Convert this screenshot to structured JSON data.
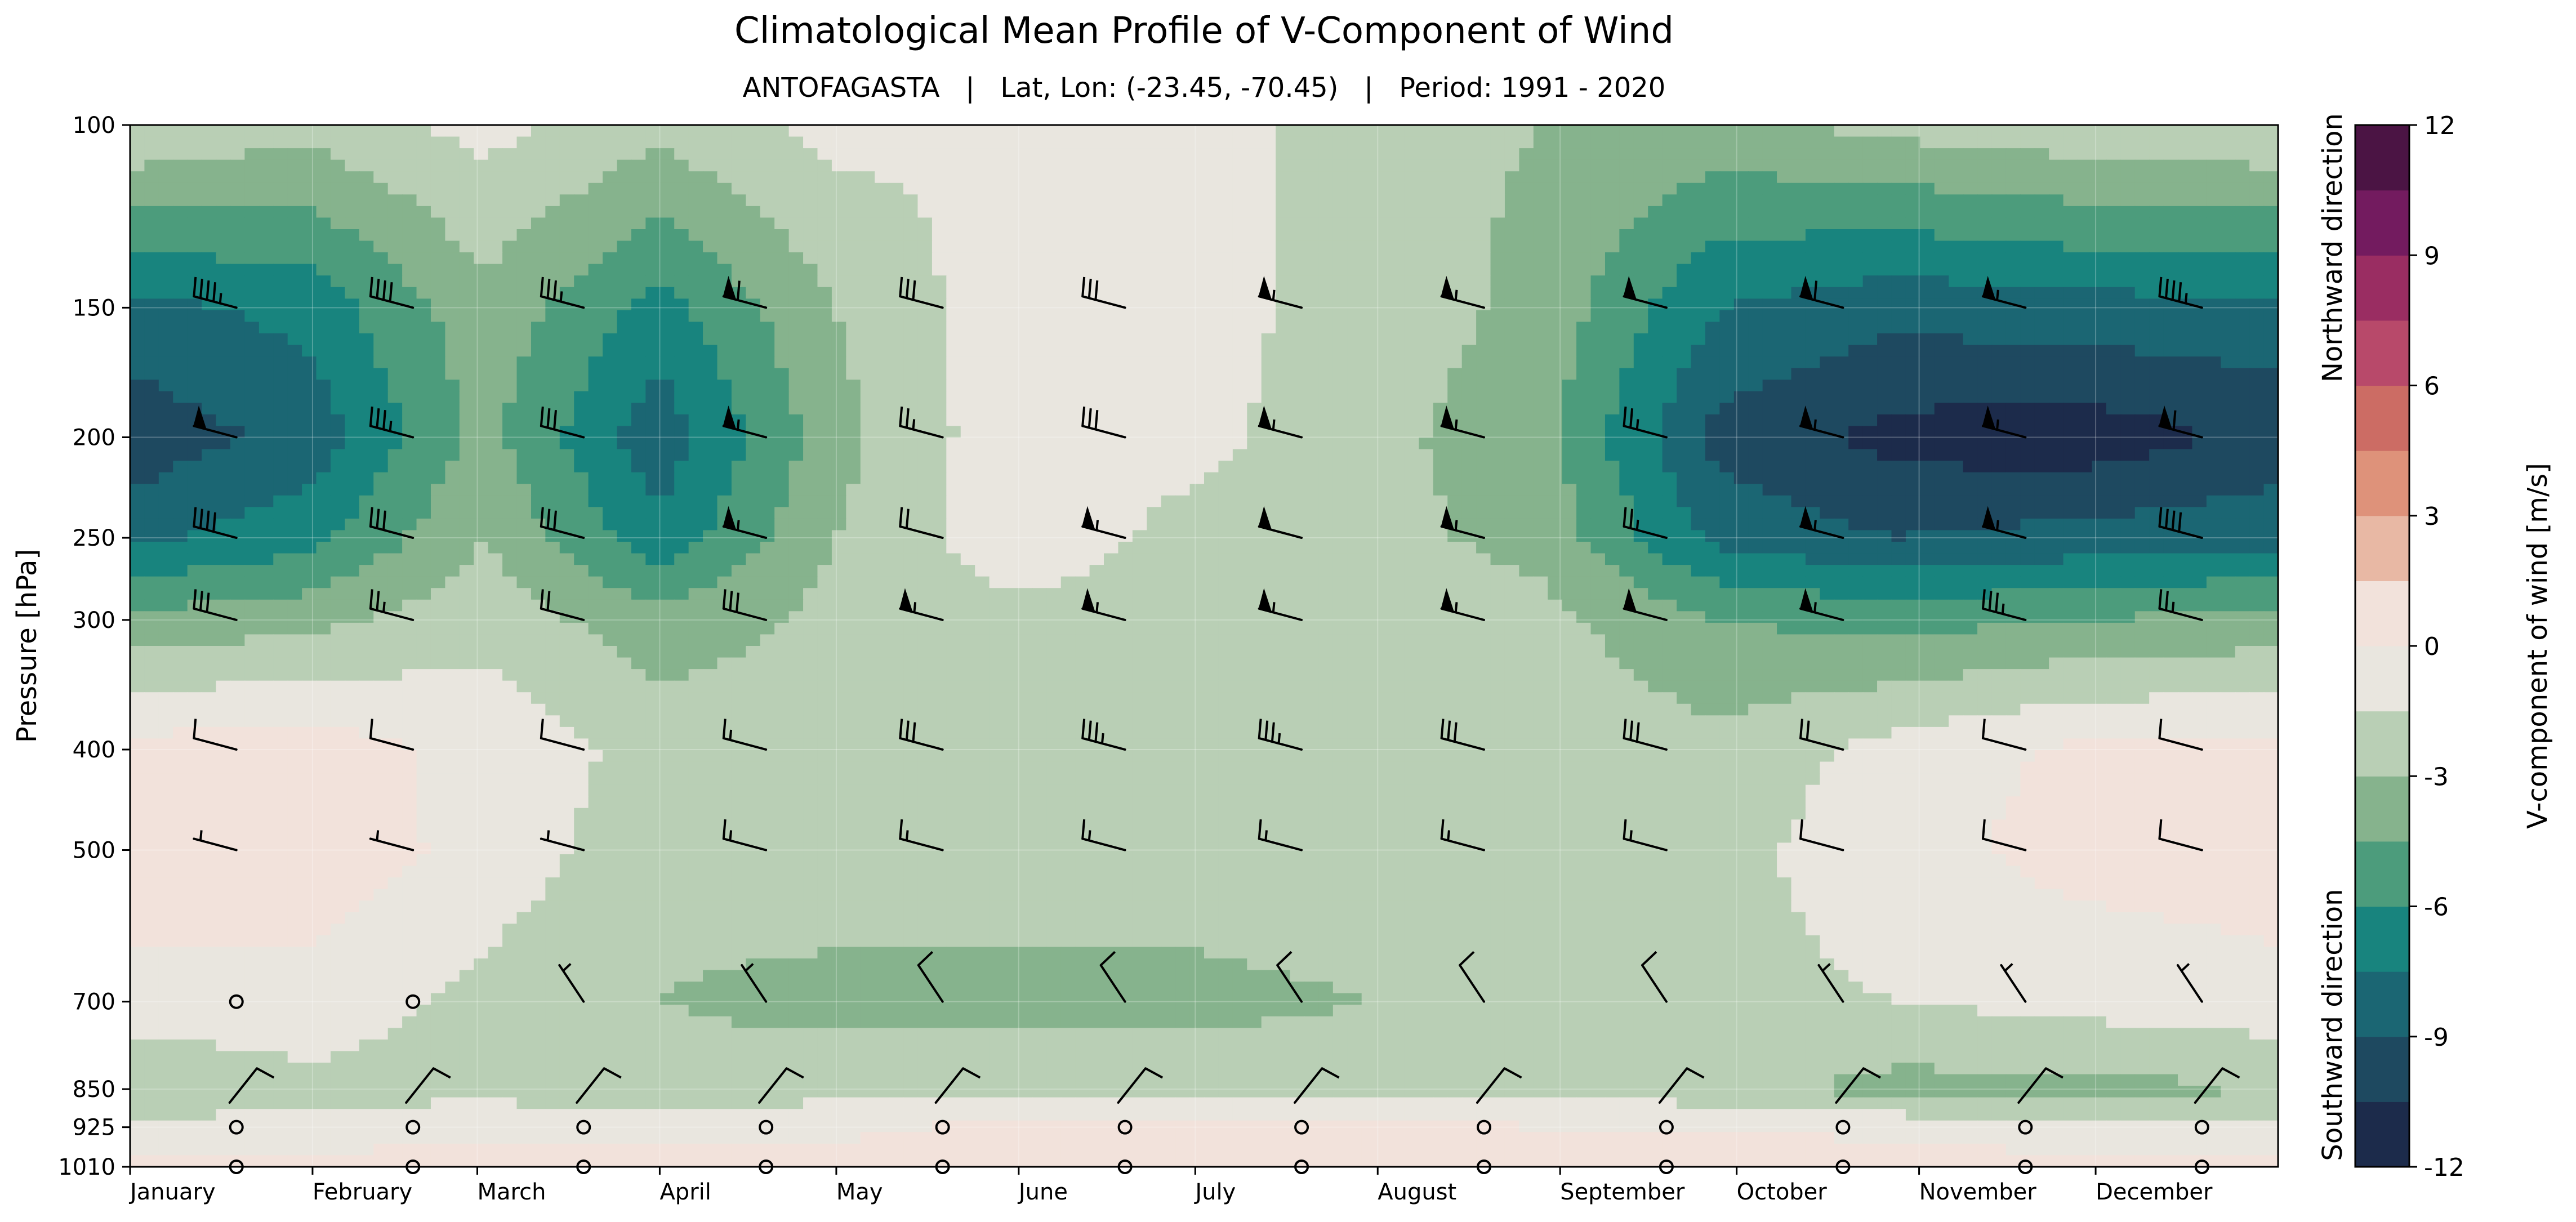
{
  "chart_data": {
    "type": "heatmap",
    "subtype": "filled-contour with wind barbs",
    "title": "Climatological Mean Profile of V-Component of Wind",
    "subtitle": "ANTOFAGASTA   |   Lat, Lon: (-23.45, -70.45)   |   Period: 1991 - 2020",
    "ylabel": "Pressure [hPa]",
    "colorbar_label": "V-component of wind [m/s]",
    "colorbar_top_note": "Northward direction",
    "colorbar_bottom_note": "Southward direction",
    "y_scale": "log",
    "y_inverted": true,
    "ylim": [
      1010,
      100
    ],
    "y_ticks": [
      100,
      150,
      200,
      250,
      300,
      400,
      500,
      700,
      850,
      925,
      1010
    ],
    "xlim": [
      0,
      365
    ],
    "x_ticks": [
      {
        "label": "January",
        "day": 0
      },
      {
        "label": "February",
        "day": 31
      },
      {
        "label": "March",
        "day": 59
      },
      {
        "label": "April",
        "day": 90
      },
      {
        "label": "May",
        "day": 120
      },
      {
        "label": "June",
        "day": 151
      },
      {
        "label": "July",
        "day": 181
      },
      {
        "label": "August",
        "day": 212
      },
      {
        "label": "September",
        "day": 243
      },
      {
        "label": "October",
        "day": 273
      },
      {
        "label": "November",
        "day": 304
      },
      {
        "label": "December",
        "day": 334
      }
    ],
    "colorbar_levels": [
      -12,
      -10.5,
      -9,
      -7.5,
      -6,
      -4.5,
      -3,
      -1.5,
      0,
      1.5,
      3,
      4.5,
      6,
      7.5,
      9,
      10.5,
      12
    ],
    "colorbar_ticks": [
      "12",
      "9",
      "6",
      "3",
      "0",
      "-3",
      "-6",
      "-9",
      "-12"
    ],
    "colors": [
      "#1c2b4b",
      "#1e4960",
      "#1b6673",
      "#18847e",
      "#4c9c7c",
      "#86b38d",
      "#b9cfb5",
      "#e9e6df",
      "#f2e2db",
      "#e8b8a4",
      "#de927a",
      "#cc6c64",
      "#b8496a",
      "#9a2d62",
      "#731b5f",
      "#4b1444"
    ],
    "z_days": [
      0,
      30,
      60,
      90,
      120,
      150,
      180,
      210,
      240,
      270,
      300,
      330,
      365
    ],
    "z_levels": [
      100,
      150,
      200,
      250,
      300,
      400,
      500,
      700,
      850,
      925,
      1010
    ],
    "z_values_ms": [
      [
        -1.5,
        -2.5,
        -1.0,
        -2.5,
        -1.0,
        -1.5,
        -0.5,
        -2.5,
        -3.0,
        -3.5,
        -2.5,
        -2.0,
        -1.5
      ],
      [
        -8.0,
        -7.0,
        -3.5,
        -6.5,
        -3.0,
        -0.5,
        -1.0,
        -2.0,
        -3.5,
        -7.5,
        -8.5,
        -8.0,
        -8.0
      ],
      [
        -10.0,
        -8.5,
        -4.0,
        -8.5,
        -3.5,
        -0.5,
        -1.0,
        -2.5,
        -4.0,
        -9.5,
        -11.0,
        -11.5,
        -10.0
      ],
      [
        -8.0,
        -6.5,
        -3.0,
        -7.0,
        -3.0,
        -0.5,
        -2.0,
        -2.5,
        -3.5,
        -8.0,
        -9.0,
        -8.5,
        -8.0
      ],
      [
        -4.0,
        -3.5,
        -2.0,
        -4.0,
        -2.5,
        -2.0,
        -2.0,
        -2.0,
        -2.5,
        -4.5,
        -5.0,
        -4.5,
        -4.0
      ],
      [
        0.5,
        0.8,
        -0.5,
        -2.0,
        -2.0,
        -2.0,
        -2.0,
        -2.0,
        -2.0,
        -2.5,
        -1.0,
        0.3,
        0.5
      ],
      [
        0.8,
        1.0,
        -0.5,
        -2.5,
        -2.0,
        -2.0,
        -2.0,
        -2.0,
        -2.0,
        -2.0,
        -0.5,
        0.5,
        0.8
      ],
      [
        -0.5,
        -0.5,
        -2.0,
        -3.0,
        -3.5,
        -3.5,
        -3.5,
        -3.0,
        -3.0,
        -2.0,
        -1.5,
        -1.0,
        -0.5
      ],
      [
        -3.0,
        -2.0,
        -2.0,
        -2.5,
        -2.0,
        -2.0,
        -2.0,
        -2.0,
        -2.0,
        -2.5,
        -3.5,
        -3.5,
        -3.0
      ],
      [
        -1.0,
        -1.0,
        -0.5,
        -0.5,
        -0.5,
        0.5,
        0.5,
        0.5,
        0.0,
        0.0,
        -0.5,
        -1.0,
        -1.0
      ],
      [
        0.5,
        0.5,
        0.8,
        0.8,
        1.0,
        1.2,
        1.2,
        1.2,
        1.0,
        1.0,
        0.8,
        0.5,
        0.5
      ]
    ],
    "barb_days": [
      15,
      45,
      74,
      105,
      135,
      166,
      196,
      227,
      258,
      288,
      319,
      349
    ],
    "barb_levels": [
      150,
      200,
      250,
      300,
      400,
      500,
      700,
      925,
      1010
    ],
    "barb_speeds_knots": [
      [
        45,
        40,
        35,
        60,
        30,
        30,
        55,
        55,
        50,
        60,
        55,
        45
      ],
      [
        50,
        35,
        30,
        55,
        25,
        30,
        55,
        55,
        25,
        55,
        55,
        60
      ],
      [
        40,
        30,
        30,
        55,
        20,
        55,
        50,
        55,
        25,
        55,
        55,
        40
      ],
      [
        30,
        25,
        20,
        30,
        55,
        55,
        55,
        55,
        50,
        55,
        35,
        25
      ],
      [
        10,
        10,
        10,
        15,
        30,
        35,
        35,
        30,
        30,
        20,
        10,
        10
      ],
      [
        5,
        5,
        5,
        15,
        15,
        15,
        15,
        15,
        15,
        10,
        10,
        10
      ],
      [
        0,
        0,
        5,
        5,
        10,
        10,
        10,
        10,
        10,
        5,
        5,
        5
      ],
      [
        0,
        0,
        0,
        0,
        0,
        0,
        0,
        0,
        0,
        0,
        0,
        0
      ],
      [
        0,
        0,
        0,
        0,
        0,
        0,
        0,
        0,
        0,
        0,
        0,
        0
      ]
    ],
    "barb_850_speeds_knots": [
      10,
      10,
      10,
      10,
      10,
      10,
      10,
      10,
      10,
      10,
      10,
      10
    ]
  }
}
